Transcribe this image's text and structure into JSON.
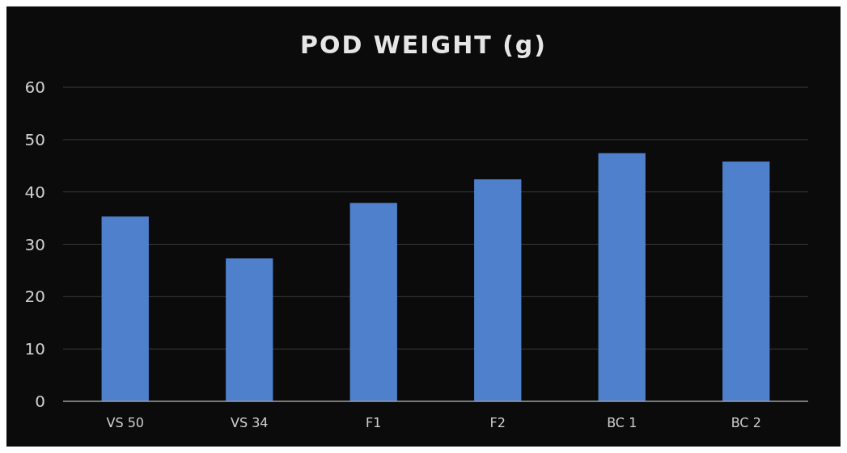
{
  "chart_data": {
    "type": "bar",
    "title": "POD WEIGHT (g)",
    "categories": [
      "VS 50",
      "VS 34",
      "F1",
      "F2",
      "BC 1",
      "BC 2"
    ],
    "values": [
      35.3,
      27.3,
      37.9,
      42.4,
      47.4,
      45.8
    ],
    "color": "#4f80cc",
    "ylim": [
      0,
      60
    ],
    "yticks": [
      0,
      10,
      20,
      30,
      40,
      50,
      60
    ],
    "grid": "y"
  }
}
